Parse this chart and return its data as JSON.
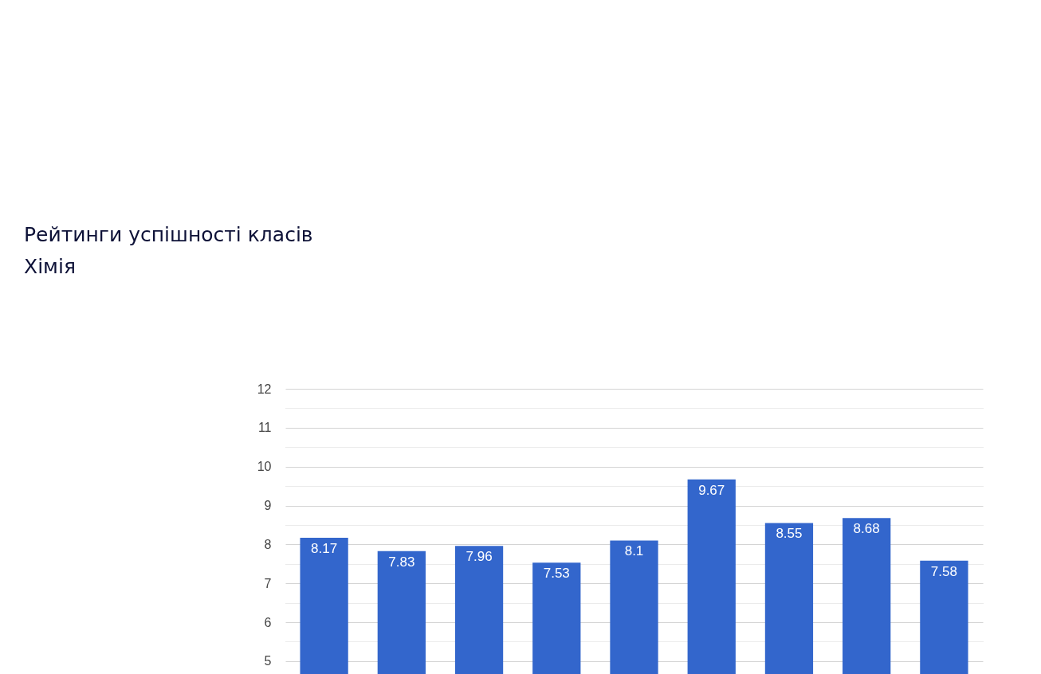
{
  "chart_data": {
    "type": "bar",
    "title": "Рейтинги успішності класів",
    "subtitle": "Хімія",
    "categories": [
      null,
      null,
      null,
      null,
      null,
      null,
      null,
      null,
      null
    ],
    "values": [
      8.17,
      7.83,
      7.96,
      7.53,
      8.1,
      9.67,
      8.55,
      8.68,
      7.58
    ],
    "color": "#3366cc",
    "data_labels": true,
    "grid": "y",
    "tick_labels": "y",
    "ylim": [
      4.67,
      12
    ],
    "yticks": [
      5,
      {
        "value": 5.5,
        "label": null
      },
      6,
      {
        "value": 6.5,
        "label": null
      },
      7,
      {
        "value": 7.5,
        "label": null
      },
      8,
      {
        "value": 8.5,
        "label": null
      },
      9,
      {
        "value": 9.5,
        "label": null
      },
      10,
      {
        "value": 10.5,
        "label": null
      },
      11,
      {
        "value": 11.5,
        "label": null
      },
      12
    ]
  }
}
